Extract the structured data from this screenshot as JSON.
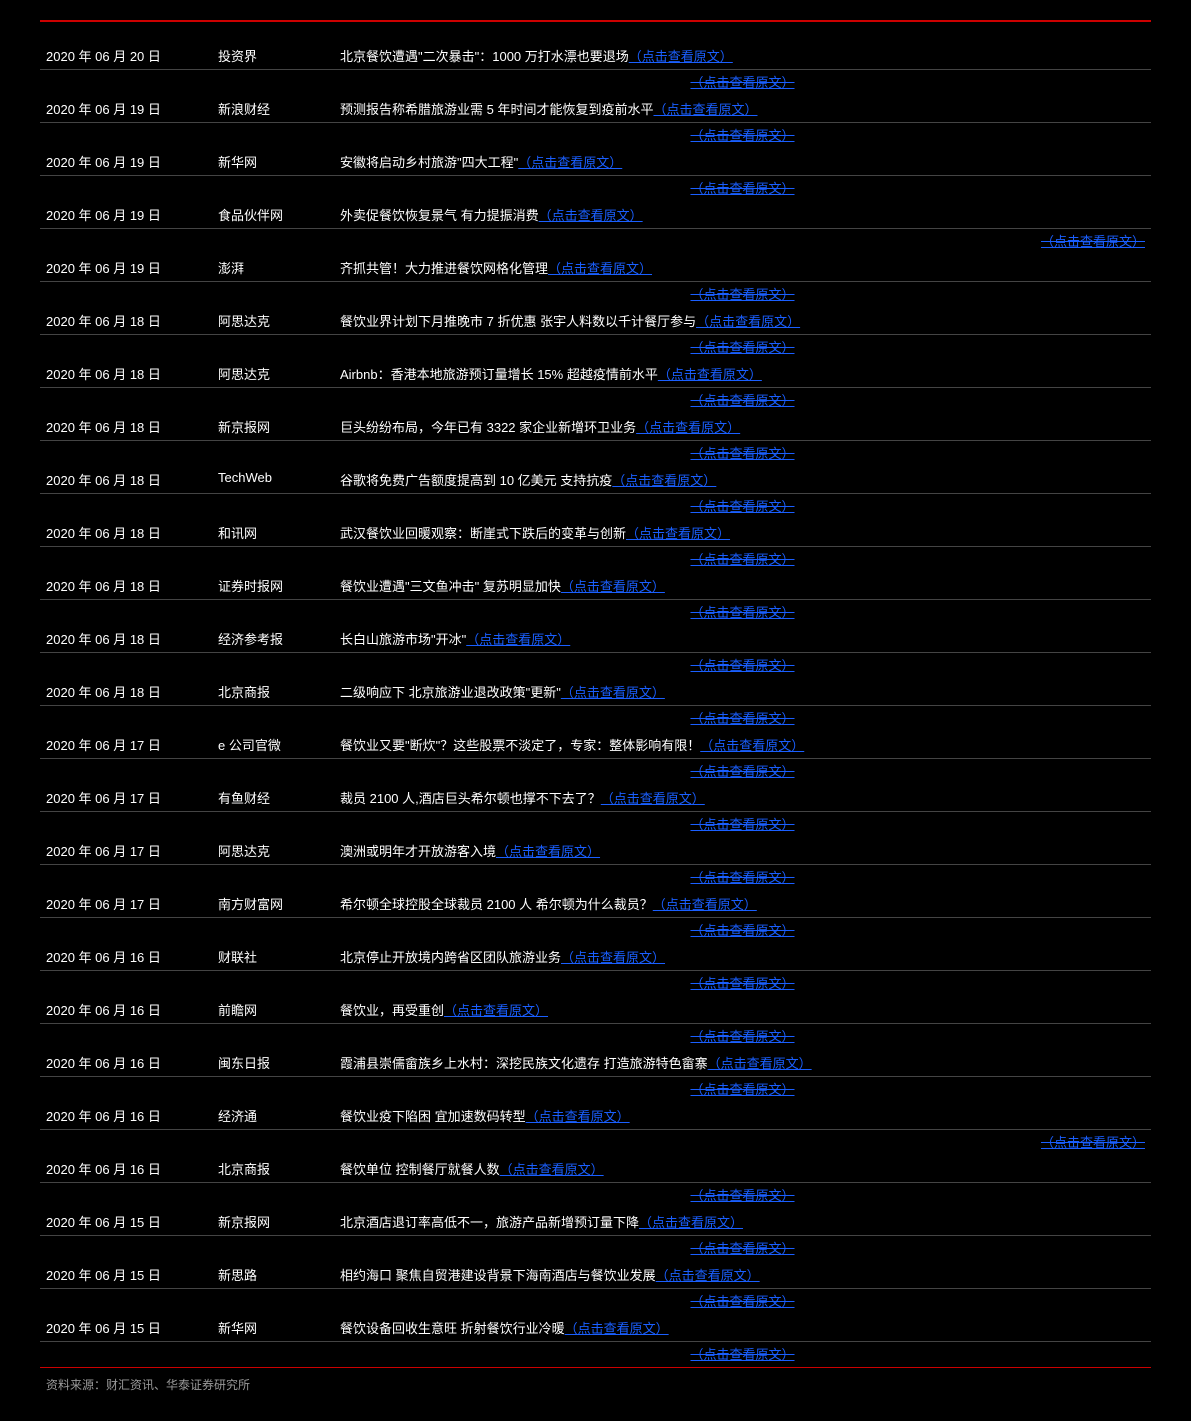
{
  "colors": {
    "background": "#000000",
    "text": "#ffffff",
    "link": "#1a5fff",
    "accent_red": "#cc0000",
    "border": "#444444",
    "footer_text": "#999999"
  },
  "typography": {
    "font_family": "Microsoft YaHei, SimSun, sans-serif",
    "font_size": 13
  },
  "columns": {
    "date_width": 160,
    "source_width": 110
  },
  "link_label": "（点击查看原文）",
  "secondary_link_label": "（点击查看原文）",
  "footer": "资料来源：财汇资讯、华泰证券研究所",
  "rows": [
    {
      "date": "2020 年 06 月 20 日",
      "source": "投资界",
      "title": "北京餐饮遭遇\"二次暴击\"：1000 万打水漂也要退场"
    },
    {
      "date": "2020 年 06 月 19 日",
      "source": "新浪财经",
      "title": "预测报告称希腊旅游业需 5 年时间才能恢复到疫前水平"
    },
    {
      "date": "2020 年 06 月 19 日",
      "source": "新华网",
      "title": "安徽将启动乡村旅游\"四大工程\""
    },
    {
      "date": "2020 年 06 月 19 日",
      "source": "食品伙伴网",
      "title": "外卖促餐饮恢复景气 有力提振消费",
      "secondary_wrap": true
    },
    {
      "date": "2020 年 06 月 19 日",
      "source": "澎湃",
      "title": "齐抓共管！大力推进餐饮网格化管理"
    },
    {
      "date": "2020 年 06 月 18 日",
      "source": "阿思达克",
      "title": "餐饮业界计划下月推晚市 7 折优惠  张宇人料数以千计餐厅参与"
    },
    {
      "date": "2020 年 06 月 18 日",
      "source": "阿思达克",
      "title": "Airbnb：香港本地旅游预订量增长 15%  超越疫情前水平"
    },
    {
      "date": "2020 年 06 月 18 日",
      "source": "新京报网",
      "title": "巨头纷纷布局，今年已有 3322 家企业新增环卫业务"
    },
    {
      "date": "2020 年 06 月 18 日",
      "source": "TechWeb",
      "title": "谷歌将免费广告额度提高到 10 亿美元  支持抗疫"
    },
    {
      "date": "2020 年 06 月 18 日",
      "source": "和讯网",
      "title": "武汉餐饮业回暖观察：断崖式下跌后的变革与创新"
    },
    {
      "date": "2020 年 06 月 18 日",
      "source": "证券时报网",
      "title": "餐饮业遭遇\"三文鱼冲击\"  复苏明显加快"
    },
    {
      "date": "2020 年 06 月 18 日",
      "source": "经济参考报",
      "title": "长白山旅游市场\"开冰\""
    },
    {
      "date": "2020 年 06 月 18 日",
      "source": "北京商报",
      "title": "二级响应下  北京旅游业退改政策\"更新\""
    },
    {
      "date": "2020 年 06 月 17 日",
      "source": "e 公司官微",
      "title": "餐饮业又要\"断炊\"？这些股票不淡定了，专家：整体影响有限！"
    },
    {
      "date": "2020 年 06 月 17 日",
      "source": "有鱼财经",
      "title": "裁员 2100 人,酒店巨头希尔顿也撑不下去了？"
    },
    {
      "date": "2020 年 06 月 17 日",
      "source": "阿思达克",
      "title": "澳洲或明年才开放游客入境"
    },
    {
      "date": "2020 年 06 月 17 日",
      "source": "南方财富网",
      "title": "希尔顿全球控股全球裁员 2100 人  希尔顿为什么裁员？"
    },
    {
      "date": "2020 年 06 月 16 日",
      "source": "财联社",
      "title": "北京停止开放境内跨省区团队旅游业务"
    },
    {
      "date": "2020 年 06 月 16 日",
      "source": "前瞻网",
      "title": "餐饮业，再受重创"
    },
    {
      "date": "2020 年 06 月 16 日",
      "source": "闽东日报",
      "title": "霞浦县崇儒畲族乡上水村：深挖民族文化遗存 打造旅游特色畲寨"
    },
    {
      "date": "2020 年 06 月 16 日",
      "source": "经济通",
      "title": "餐饮业疫下陷困 宜加速数码转型",
      "secondary_wrap": true
    },
    {
      "date": "2020 年 06 月 16 日",
      "source": "北京商报",
      "title": "餐饮单位 控制餐厅就餐人数"
    },
    {
      "date": "2020 年 06 月 15 日",
      "source": "新京报网",
      "title": "北京酒店退订率高低不一，旅游产品新增预订量下降"
    },
    {
      "date": "2020 年 06 月 15 日",
      "source": "新思路",
      "title": "相约海口  聚焦自贸港建设背景下海南酒店与餐饮业发展"
    },
    {
      "date": "2020 年 06 月 15 日",
      "source": "新华网",
      "title": "餐饮设备回收生意旺  折射餐饮行业冷暖"
    }
  ]
}
